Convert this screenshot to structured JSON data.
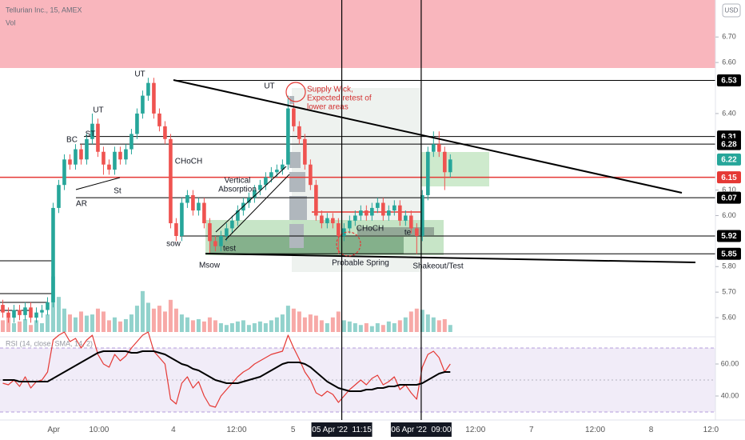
{
  "chart_data": {
    "type": "candlestick",
    "title": "Tellurian Inc., 15, AMEX",
    "volume_label": "Vol",
    "currency": "USD",
    "xlim": [
      -0.5,
      127.4
    ],
    "xticks": [
      {
        "value": 9.1,
        "label": "Apr"
      },
      {
        "value": 17.2,
        "label": "10:00"
      },
      {
        "value": 30.5,
        "label": "4"
      },
      {
        "value": 41.8,
        "label": "12:00"
      },
      {
        "value": 51.9,
        "label": "5"
      },
      {
        "value": 60.6,
        "label": "05 Apr '22  11:15",
        "highlight": true
      },
      {
        "value": 74.8,
        "label": "06 Apr '22  09:00",
        "highlight": true
      },
      {
        "value": 84.5,
        "label": "12:00"
      },
      {
        "value": 94.5,
        "label": "7"
      },
      {
        "value": 105.9,
        "label": "12:00"
      },
      {
        "value": 115.9,
        "label": "8"
      },
      {
        "value": 126.6,
        "label": "12:0"
      }
    ],
    "ylim": [
      5.528,
      6.845
    ],
    "yticks": [
      {
        "value": 6.7,
        "label": "6.70"
      },
      {
        "value": 6.6,
        "label": "6.60"
      },
      {
        "value": 6.4,
        "label": "6.40"
      },
      {
        "value": 6.1,
        "label": "6.10"
      },
      {
        "value": 6.0,
        "label": "6.00"
      },
      {
        "value": 5.8,
        "label": "5.80"
      },
      {
        "value": 5.7,
        "label": "5.70"
      },
      {
        "value": 5.6,
        "label": "5.60"
      }
    ],
    "up_color": "#26a69a",
    "down_color": "#ef5350",
    "open": [
      5.65,
      5.62,
      5.6,
      5.63,
      5.61,
      5.64,
      5.6,
      5.62,
      5.63,
      5.66,
      6.03,
      6.12,
      6.22,
      6.2,
      6.26,
      6.22,
      6.3,
      6.36,
      6.25,
      6.2,
      6.18,
      6.25,
      6.22,
      6.26,
      6.32,
      6.4,
      6.47,
      6.52,
      6.4,
      6.35,
      6.3,
      5.97,
      5.92,
      6.05,
      6.08,
      6.02,
      6.05,
      5.97,
      5.9,
      5.88,
      5.92,
      5.95,
      5.98,
      6.02,
      6.05,
      6.07,
      6.1,
      6.12,
      6.15,
      6.17,
      6.18,
      6.2,
      6.42,
      6.35,
      6.3,
      6.2,
      6.12,
      6.0,
      5.97,
      5.99,
      5.97,
      5.92,
      5.95,
      5.98,
      6.0,
      6.02,
      6.0,
      6.03,
      6.05,
      6.0,
      6.02,
      6.04,
      5.98,
      6.0,
      5.95,
      5.92,
      6.08,
      6.25,
      6.28,
      6.25,
      6.17
    ],
    "high": [
      5.67,
      5.64,
      5.65,
      5.65,
      5.66,
      5.66,
      5.64,
      5.65,
      5.68,
      6.05,
      6.14,
      6.24,
      6.24,
      6.28,
      6.28,
      6.32,
      6.4,
      6.38,
      6.27,
      6.22,
      6.27,
      6.27,
      6.28,
      6.34,
      6.42,
      6.49,
      6.54,
      6.54,
      6.42,
      6.37,
      6.32,
      5.99,
      6.07,
      6.1,
      6.1,
      6.07,
      6.07,
      5.99,
      5.92,
      5.94,
      5.97,
      6.0,
      6.04,
      6.07,
      6.09,
      6.12,
      6.14,
      6.17,
      6.19,
      6.2,
      6.22,
      6.47,
      6.44,
      6.37,
      6.32,
      6.22,
      6.14,
      6.02,
      6.01,
      6.01,
      5.99,
      5.97,
      6.0,
      6.02,
      6.04,
      6.04,
      6.05,
      6.07,
      6.07,
      6.04,
      6.06,
      6.06,
      6.02,
      6.02,
      5.97,
      6.1,
      6.27,
      6.33,
      6.33,
      6.27,
      6.24
    ],
    "low": [
      5.6,
      5.58,
      5.58,
      5.59,
      5.59,
      5.58,
      5.58,
      5.6,
      5.61,
      5.64,
      6.01,
      6.1,
      6.18,
      6.18,
      6.2,
      6.2,
      6.28,
      6.23,
      6.16,
      6.16,
      6.16,
      6.2,
      6.2,
      6.24,
      6.3,
      6.38,
      6.45,
      6.38,
      6.33,
      6.28,
      5.95,
      5.9,
      5.9,
      6.03,
      6.0,
      6.0,
      5.95,
      5.85,
      5.86,
      5.86,
      5.9,
      5.93,
      5.96,
      6.0,
      6.03,
      6.05,
      6.08,
      6.1,
      6.13,
      6.15,
      6.16,
      6.18,
      6.33,
      6.28,
      6.18,
      6.1,
      5.98,
      5.95,
      5.95,
      5.95,
      5.85,
      5.9,
      5.93,
      5.96,
      5.98,
      5.98,
      5.98,
      6.01,
      5.98,
      5.98,
      6.0,
      5.96,
      5.96,
      5.93,
      5.85,
      5.9,
      6.06,
      6.23,
      6.23,
      6.1,
      6.15
    ],
    "close": [
      5.62,
      5.6,
      5.63,
      5.61,
      5.64,
      5.6,
      5.62,
      5.63,
      5.66,
      6.03,
      6.12,
      6.22,
      6.2,
      6.26,
      6.22,
      6.3,
      6.36,
      6.25,
      6.2,
      6.18,
      6.25,
      6.22,
      6.26,
      6.32,
      6.4,
      6.47,
      6.52,
      6.4,
      6.35,
      6.3,
      5.97,
      5.92,
      6.05,
      6.08,
      6.02,
      6.05,
      5.97,
      5.9,
      5.88,
      5.92,
      5.95,
      5.98,
      6.02,
      6.05,
      6.07,
      6.1,
      6.12,
      6.15,
      6.17,
      6.18,
      6.2,
      6.42,
      6.35,
      6.3,
      6.2,
      6.12,
      6.0,
      5.97,
      5.99,
      5.97,
      5.92,
      5.95,
      5.98,
      6.0,
      6.02,
      6.0,
      6.03,
      6.05,
      6.0,
      6.02,
      6.04,
      5.98,
      6.0,
      5.95,
      5.92,
      6.08,
      6.25,
      6.28,
      6.25,
      6.17,
      6.22
    ],
    "volume": {
      "vlim": [
        0,
        130
      ],
      "values": [
        20,
        25,
        15,
        18,
        22,
        12,
        20,
        15,
        30,
        95,
        60,
        40,
        30,
        25,
        35,
        28,
        30,
        40,
        35,
        20,
        25,
        18,
        22,
        30,
        45,
        70,
        50,
        40,
        45,
        35,
        55,
        40,
        30,
        25,
        20,
        22,
        18,
        25,
        20,
        15,
        12,
        15,
        18,
        20,
        12,
        15,
        18,
        15,
        20,
        25,
        30,
        45,
        40,
        35,
        25,
        30,
        28,
        20,
        15,
        25,
        35,
        20,
        18,
        15,
        12,
        15,
        10,
        15,
        12,
        18,
        15,
        20,
        25,
        35,
        40,
        38,
        30,
        25,
        20,
        22,
        12
      ]
    },
    "levels": [
      {
        "value": 6.53,
        "color": "#000000"
      },
      {
        "value": 6.31,
        "color": "#000000"
      },
      {
        "value": 6.28,
        "color": "#000000"
      },
      {
        "value": 6.22,
        "color": "#26a69a"
      },
      {
        "value": 6.15,
        "color": "#e53935"
      },
      {
        "value": 6.07,
        "color": "#000000"
      },
      {
        "value": 5.92,
        "color": "#000000"
      },
      {
        "value": 5.85,
        "color": "#000000"
      }
    ],
    "annotations": [
      {
        "lines": [
          "UT"
        ]
      },
      {
        "lines": [
          "UT"
        ]
      },
      {
        "lines": [
          "BC"
        ]
      },
      {
        "lines": [
          "ST"
        ]
      },
      {
        "lines": [
          "AR"
        ]
      },
      {
        "lines": [
          "St"
        ]
      },
      {
        "lines": [
          "CHoCH"
        ]
      },
      {
        "lines": [
          "sow"
        ]
      },
      {
        "lines": [
          "Vertical",
          "Absorption"
        ]
      },
      {
        "lines": [
          "test"
        ]
      },
      {
        "lines": [
          "Msow"
        ]
      },
      {
        "lines": [
          "UT"
        ]
      },
      {
        "lines": [
          "Supply Wick,",
          "Expected retest of",
          "lower areas"
        ],
        "color": "#d32f2f"
      },
      {
        "lines": [
          "CHoCH"
        ]
      },
      {
        "lines": [
          "te"
        ]
      },
      {
        "lines": [
          "Probable Spring"
        ]
      },
      {
        "lines": [
          "Shakeout/Test"
        ]
      }
    ],
    "rsi": {
      "label": "RSI (14, close, SMA, 14, 2)",
      "color": "#e53935",
      "sma_color": "#000000",
      "ylim": [
        27.5,
        76.5
      ],
      "yticks": [
        {
          "value": 60,
          "label": "60.00"
        },
        {
          "value": 40,
          "label": "40.00"
        }
      ],
      "band": [
        30,
        70
      ],
      "mid": 50,
      "values": [
        48,
        47,
        50,
        46,
        52,
        45,
        49,
        50,
        55,
        75,
        78,
        80,
        74,
        76,
        70,
        75,
        78,
        66,
        60,
        58,
        66,
        62,
        65,
        70,
        74,
        78,
        80,
        68,
        64,
        60,
        38,
        35,
        48,
        52,
        45,
        49,
        40,
        34,
        33,
        40,
        44,
        48,
        52,
        55,
        57,
        60,
        62,
        64,
        66,
        67,
        68,
        78,
        70,
        63,
        55,
        50,
        42,
        40,
        43,
        41,
        36,
        40,
        44,
        47,
        50,
        47,
        51,
        53,
        47,
        49,
        52,
        44,
        47,
        42,
        38,
        58,
        66,
        68,
        64,
        55,
        60
      ],
      "sma": [
        50,
        50,
        50,
        49,
        49,
        49,
        49,
        49,
        49,
        51,
        53,
        55,
        57,
        59,
        61,
        63,
        65,
        67,
        68,
        68,
        68,
        68,
        68,
        67,
        67,
        68,
        68,
        68,
        67,
        66,
        64,
        62,
        60,
        59,
        57,
        56,
        54,
        52,
        50,
        49,
        48,
        48,
        48,
        49,
        50,
        51,
        52,
        54,
        56,
        58,
        60,
        61,
        61,
        61,
        60,
        58,
        55,
        52,
        49,
        47,
        45,
        44,
        43,
        43,
        43,
        44,
        44,
        45,
        45,
        46,
        46,
        47,
        47,
        47,
        47,
        48,
        50,
        52,
        54,
        55,
        55
      ]
    }
  }
}
